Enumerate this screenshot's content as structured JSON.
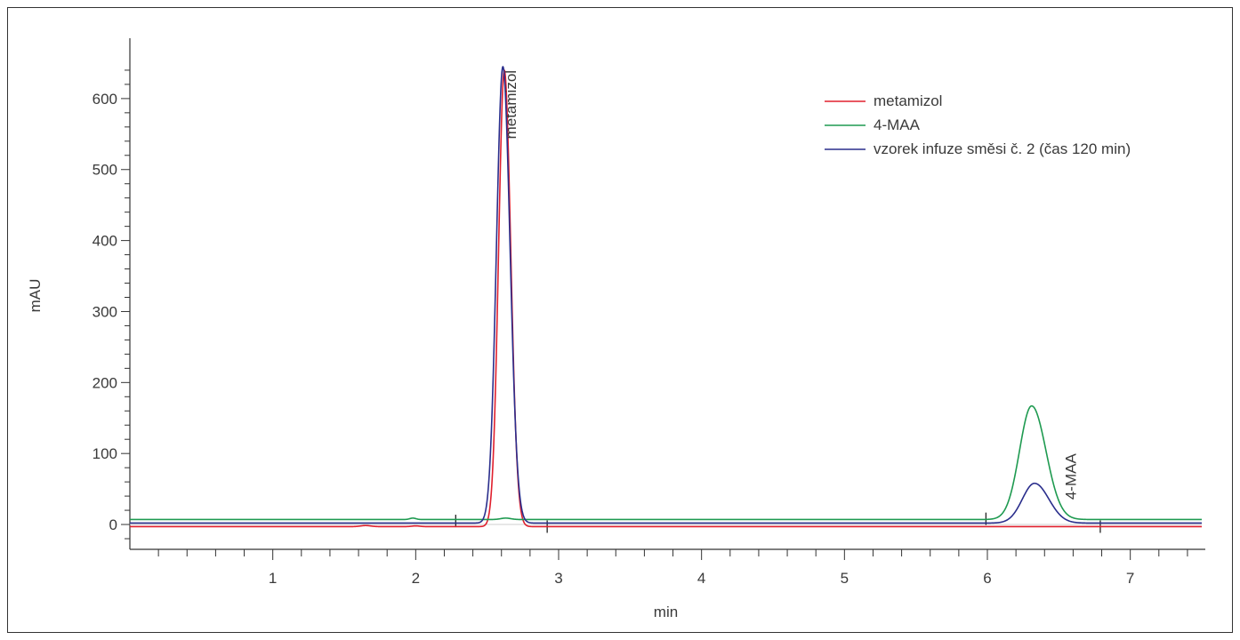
{
  "chart_data": {
    "type": "line",
    "title": "",
    "xlabel": "min",
    "ylabel": "mAU",
    "xlim": [
      0,
      7.5
    ],
    "ylim": [
      -35,
      680
    ],
    "x_ticks": [
      1,
      2,
      3,
      4,
      5,
      6,
      7
    ],
    "x_tick_labels": [
      "1",
      "2",
      "3",
      "4",
      "5",
      "6",
      "7"
    ],
    "y_ticks": [
      0,
      100,
      200,
      300,
      400,
      500,
      600
    ],
    "y_tick_labels": [
      "0",
      "100",
      "200",
      "300",
      "400",
      "500",
      "600"
    ],
    "grid": false,
    "legend_position": "top-right",
    "series": [
      {
        "name": "metamizol",
        "color": "#e0202e",
        "baseline": -3,
        "baseline_drift": [
          {
            "x": 1.65,
            "dy": 1.5,
            "w": 0.05
          },
          {
            "x": 2.0,
            "dy": 1.0,
            "w": 0.04
          }
        ],
        "peaks": [
          {
            "x": 2.62,
            "height": 643,
            "sigma_left": 0.04,
            "sigma_right": 0.045
          }
        ]
      },
      {
        "name": "4-MAA",
        "color": "#1e9a50",
        "baseline": 7,
        "baseline_drift": [
          {
            "x": 1.98,
            "dy": 2.0,
            "w": 0.03
          },
          {
            "x": 2.63,
            "dy": 2.0,
            "w": 0.05
          }
        ],
        "peaks": [
          {
            "x": 6.31,
            "height": 160,
            "sigma_left": 0.085,
            "sigma_right": 0.1
          }
        ]
      },
      {
        "name": "vzorek infuze směsi č. 2 (čas 120 min)",
        "color": "#2a2e8c",
        "baseline": 2,
        "baseline_drift": [],
        "peaks": [
          {
            "x": 2.61,
            "height": 643,
            "sigma_left": 0.045,
            "sigma_right": 0.05
          },
          {
            "x": 6.33,
            "height": 56,
            "sigma_left": 0.085,
            "sigma_right": 0.1
          }
        ]
      }
    ],
    "annotations": [
      {
        "text": "metamizol",
        "x": 2.7,
        "y": 640,
        "rotation": -90
      },
      {
        "text": "4-MAA",
        "x": 6.62,
        "y": 100,
        "rotation": -90
      }
    ],
    "integration_marks": [
      {
        "x": 2.28,
        "y": 5
      },
      {
        "x": 2.92,
        "y": -3
      },
      {
        "x": 5.99,
        "y": 8
      },
      {
        "x": 6.79,
        "y": -3
      }
    ]
  }
}
